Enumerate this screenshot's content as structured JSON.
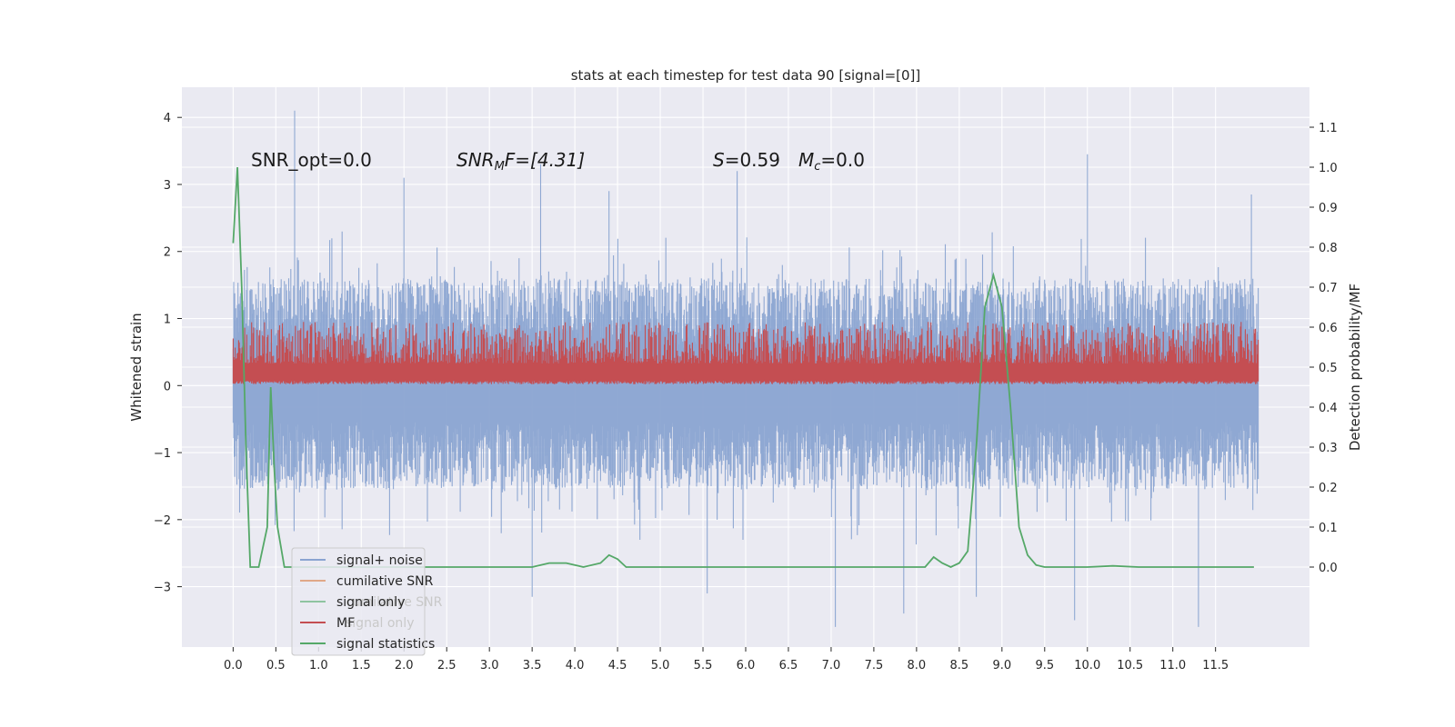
{
  "chart_data": {
    "type": "line",
    "title": "stats at each timestep for test data 90 [signal=[0]]",
    "xlabel": "",
    "ylabel": "Whitened strain",
    "y2label": "Detection probability/MF",
    "xlim": [
      -0.6,
      12.6
    ],
    "ylim": [
      -3.9,
      4.45
    ],
    "y2lim": [
      -0.2,
      1.2
    ],
    "grid": true,
    "x_ticks": [
      "0.0",
      "0.5",
      "1.0",
      "1.5",
      "2.0",
      "2.5",
      "3.0",
      "3.5",
      "4.0",
      "4.5",
      "5.0",
      "5.5",
      "6.0",
      "6.5",
      "7.0",
      "7.5",
      "8.0",
      "8.5",
      "9.0",
      "9.5",
      "10.0",
      "10.5",
      "11.0",
      "11.5"
    ],
    "y_ticks": [
      "4",
      "3",
      "2",
      "1",
      "0",
      "−1",
      "−2",
      "−3"
    ],
    "y2_ticks": [
      "1.1",
      "1.0",
      "0.9",
      "0.8",
      "0.7",
      "0.6",
      "0.5",
      "0.4",
      "0.3",
      "0.2",
      "0.1",
      "0.0"
    ],
    "annotations": {
      "snr_opt": "SNR_opt=0.0",
      "snr_mf_sym": "SNR",
      "snr_mf_sub": "M",
      "snr_mf_rest": "F=[4.31]",
      "s_sym": "S",
      "s_value": "=0.59",
      "mc_sym": "M",
      "mc_sub": "c",
      "mc_value": "=0.0"
    },
    "legend": {
      "placement": "lower-left",
      "entries": [
        {
          "label": "signal+ noise",
          "color": "#8aa4d1"
        },
        {
          "label": "cumilative SNR",
          "color": "#e0a888"
        },
        {
          "label": "signal only",
          "color": "#8fc4a0"
        },
        {
          "label": "MF",
          "color": "#c44e52"
        },
        {
          "label": "signal statistics",
          "color": "#55a868"
        }
      ],
      "ghost_labels": [
        "cumilative SNR",
        "signal only"
      ]
    },
    "series": [
      {
        "name": "signal+ noise",
        "axis": "left",
        "color": "#8aa4d1",
        "kind": "noise",
        "x_range": [
          0.0,
          12.0
        ],
        "peaks_high": [
          [
            0.72,
            4.1
          ],
          [
            2.0,
            3.1
          ],
          [
            3.6,
            3.3
          ],
          [
            4.4,
            2.9
          ],
          [
            5.9,
            3.2
          ],
          [
            10.0,
            3.45
          ],
          [
            11.92,
            2.85
          ]
        ],
        "peaks_low": [
          [
            3.5,
            -3.15
          ],
          [
            5.55,
            -3.1
          ],
          [
            7.05,
            -3.6
          ],
          [
            7.85,
            -3.4
          ],
          [
            8.7,
            -3.15
          ],
          [
            9.85,
            -3.5
          ],
          [
            11.3,
            -3.6
          ]
        ]
      },
      {
        "name": "MF",
        "axis": "left",
        "color": "#c44e52",
        "kind": "band",
        "x_range": [
          0.0,
          12.0
        ],
        "center": 0.28,
        "low": 0.02,
        "high": 0.9
      },
      {
        "name": "signal statistics",
        "axis": "right",
        "color": "#55a868",
        "kind": "line",
        "x": [
          0.0,
          0.05,
          0.1,
          0.15,
          0.2,
          0.3,
          0.4,
          0.44,
          0.48,
          0.52,
          0.6,
          0.7,
          1.0,
          1.5,
          2.0,
          2.5,
          3.0,
          3.5,
          3.7,
          3.9,
          4.1,
          4.3,
          4.4,
          4.5,
          4.6,
          4.8,
          5.0,
          6.0,
          7.0,
          8.0,
          8.1,
          8.2,
          8.3,
          8.4,
          8.5,
          8.6,
          8.7,
          8.8,
          8.9,
          9.0,
          9.1,
          9.2,
          9.3,
          9.4,
          9.5,
          10.0,
          10.3,
          10.6,
          11.0,
          11.5,
          11.95
        ],
        "y": [
          0.81,
          1.0,
          0.7,
          0.3,
          0.0,
          0.0,
          0.1,
          0.45,
          0.25,
          0.1,
          0.0,
          0.0,
          0.0,
          0.0,
          0.0,
          0.0,
          0.0,
          0.0,
          0.01,
          0.01,
          0.0,
          0.01,
          0.03,
          0.02,
          0.0,
          0.0,
          0.0,
          0.0,
          0.0,
          0.0,
          0.0,
          0.025,
          0.01,
          0.0,
          0.01,
          0.04,
          0.3,
          0.65,
          0.73,
          0.65,
          0.4,
          0.1,
          0.03,
          0.005,
          0.0,
          0.0,
          0.003,
          0.0,
          0.0,
          0.0,
          0.0
        ]
      }
    ]
  }
}
